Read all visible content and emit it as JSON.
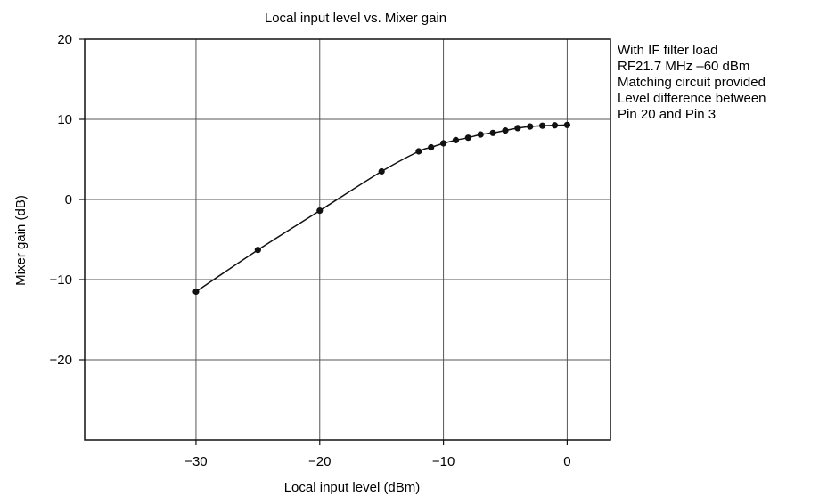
{
  "chart_data": {
    "type": "line",
    "title": "Local input level vs. Mixer gain",
    "xlabel": "Local input level (dBm)",
    "ylabel": "Mixer gain (dB)",
    "xlim": [
      -39,
      3.5
    ],
    "ylim": [
      -30,
      20
    ],
    "x_ticks": [
      -30,
      -20,
      -10,
      0
    ],
    "y_ticks": [
      20,
      10,
      0,
      -10,
      -20
    ],
    "x_tick_labels": [
      "−30",
      "−20",
      "−10",
      "0"
    ],
    "y_tick_labels": [
      "20",
      "10",
      "0",
      "−10",
      "−20"
    ],
    "x_gridlines": [
      -30,
      -20,
      -10,
      0
    ],
    "y_gridlines": [
      10,
      0,
      -10,
      -20
    ],
    "grid": true,
    "annotation": [
      "With IF filter load",
      "RF21.7 MHz –60 dBm",
      "Matching circuit provided",
      "Level difference between",
      "Pin 20 and Pin 3"
    ],
    "series": [
      {
        "x": [
          -30,
          -25,
          -20,
          -15,
          -12,
          -11,
          -10,
          -9,
          -8,
          -7,
          -6,
          -5,
          -4,
          -3,
          -2,
          -1,
          0
        ],
        "y": [
          -11.5,
          -6.3,
          -1.4,
          3.5,
          6.0,
          6.5,
          7.0,
          7.4,
          7.7,
          8.1,
          8.3,
          8.6,
          8.9,
          9.1,
          9.2,
          9.25,
          9.3
        ]
      }
    ]
  }
}
